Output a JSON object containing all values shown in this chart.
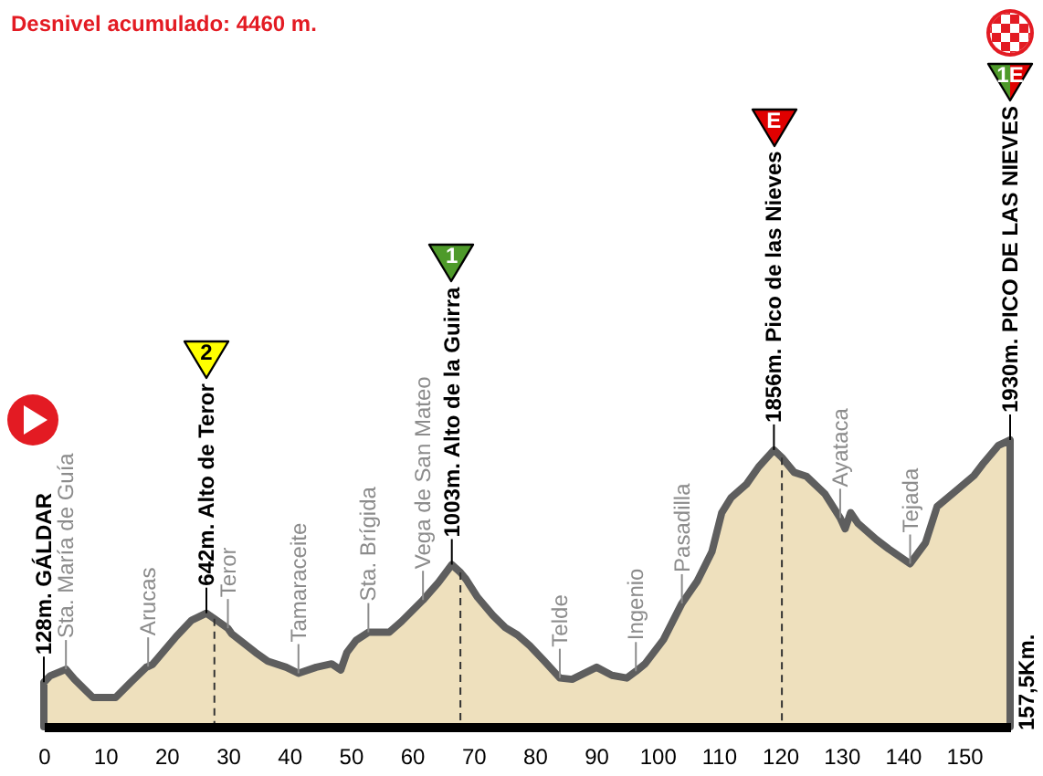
{
  "chart_data": {
    "type": "area",
    "title": "Desnivel acumulado: 4460 m.",
    "x": [
      0,
      1,
      3.6,
      4.2,
      5,
      8,
      11.7,
      14.2,
      16.7,
      17,
      17.7,
      21.6,
      24.1,
      26.5,
      27.8,
      30,
      30.6,
      34.5,
      36.5,
      39.5,
      41.5,
      44.4,
      46.9,
      48.4,
      49.4,
      50.9,
      52.9,
      56.3,
      58.3,
      61.8,
      64.3,
      66.5,
      67.9,
      68.8,
      70.7,
      73.2,
      75.2,
      77.2,
      79.2,
      81.6,
      84.1,
      86.1,
      90.1,
      92.6,
      95,
      96.5,
      98,
      101,
      104,
      106.5,
      108.9,
      110.5,
      112,
      114.5,
      116.5,
      119,
      120.3,
      122.3,
      124.3,
      127.3,
      129.8,
      130.6,
      131.5,
      132.7,
      135.7,
      137.7,
      141.2,
      143.7,
      145.6,
      148.6,
      151.6,
      153.1,
      155.6,
      157.5
    ],
    "values": [
      128,
      175,
      225,
      193,
      150,
      15,
      15,
      130,
      240,
      245,
      260,
      470,
      590,
      642,
      600,
      530,
      490,
      350,
      285,
      240,
      195,
      240,
      265,
      220,
      350,
      440,
      500,
      500,
      580,
      740,
      870,
      1003,
      945,
      895,
      760,
      625,
      535,
      480,
      400,
      285,
      160,
      150,
      240,
      180,
      160,
      210,
      265,
      445,
      715,
      880,
      1100,
      1390,
      1500,
      1600,
      1730,
      1856,
      1800,
      1690,
      1660,
      1530,
      1350,
      1270,
      1390,
      1310,
      1190,
      1120,
      1010,
      1165,
      1435,
      1550,
      1665,
      1755,
      1890,
      1930
    ],
    "value_labels": [
      "128m. GÁLDAR",
      null,
      null,
      null,
      null,
      null,
      null,
      null,
      null,
      null,
      null,
      null,
      null,
      "642m. Alto de Teror",
      null,
      null,
      null,
      null,
      null,
      null,
      null,
      null,
      null,
      null,
      null,
      null,
      null,
      null,
      null,
      null,
      null,
      "1003m. Alto de la Guirra",
      null,
      null,
      null,
      null,
      null,
      null,
      null,
      null,
      null,
      null,
      null,
      null,
      null,
      null,
      null,
      null,
      null,
      null,
      null,
      null,
      null,
      null,
      null,
      "1856m. Pico de las Nieves",
      null,
      null,
      null,
      null,
      null,
      null,
      null,
      null,
      null,
      null,
      null,
      null,
      null,
      null,
      null,
      null,
      null,
      "1930m. PICO DE LAS NIEVES"
    ],
    "color": "#eee0bd",
    "xlim": [
      0,
      157.5
    ],
    "xticks": [
      0,
      10,
      20,
      30,
      40,
      50,
      60,
      70,
      80,
      90,
      100,
      110,
      120,
      130,
      140,
      150
    ],
    "tick_labels": "x",
    "ref_lines": [
      {
        "axis": "x",
        "value": 27.8,
        "line_style": "dashed"
      },
      {
        "axis": "x",
        "value": 67.9,
        "line_style": "dashed"
      },
      {
        "axis": "x",
        "value": 120.3,
        "line_style": "dashed"
      }
    ],
    "annotations": [
      {
        "text": "Sta. María de Guía",
        "x": 3.6,
        "y": 225
      },
      {
        "text": "Arucas",
        "x": 17,
        "y": 245
      },
      {
        "text": "Teror",
        "x": 30,
        "y": 530
      },
      {
        "text": "Tamaraceite",
        "x": 41.5,
        "y": 195
      },
      {
        "text": "Sta. Brígida",
        "x": 52.9,
        "y": 500
      },
      {
        "text": "Vega de San Mateo",
        "x": 61.8,
        "y": 740
      },
      {
        "text": "Telde",
        "x": 84.1,
        "y": 160
      },
      {
        "text": "Ingenio",
        "x": 96.5,
        "y": 210
      },
      {
        "text": "Pasadilla",
        "x": 104,
        "y": 715
      },
      {
        "text": "Ayataca",
        "x": 129.8,
        "y": 1350
      },
      {
        "text": "Tejada",
        "x": 141.2,
        "y": 1010
      },
      "2",
      "1",
      "E",
      "1E",
      "157,5Km."
    ]
  }
}
